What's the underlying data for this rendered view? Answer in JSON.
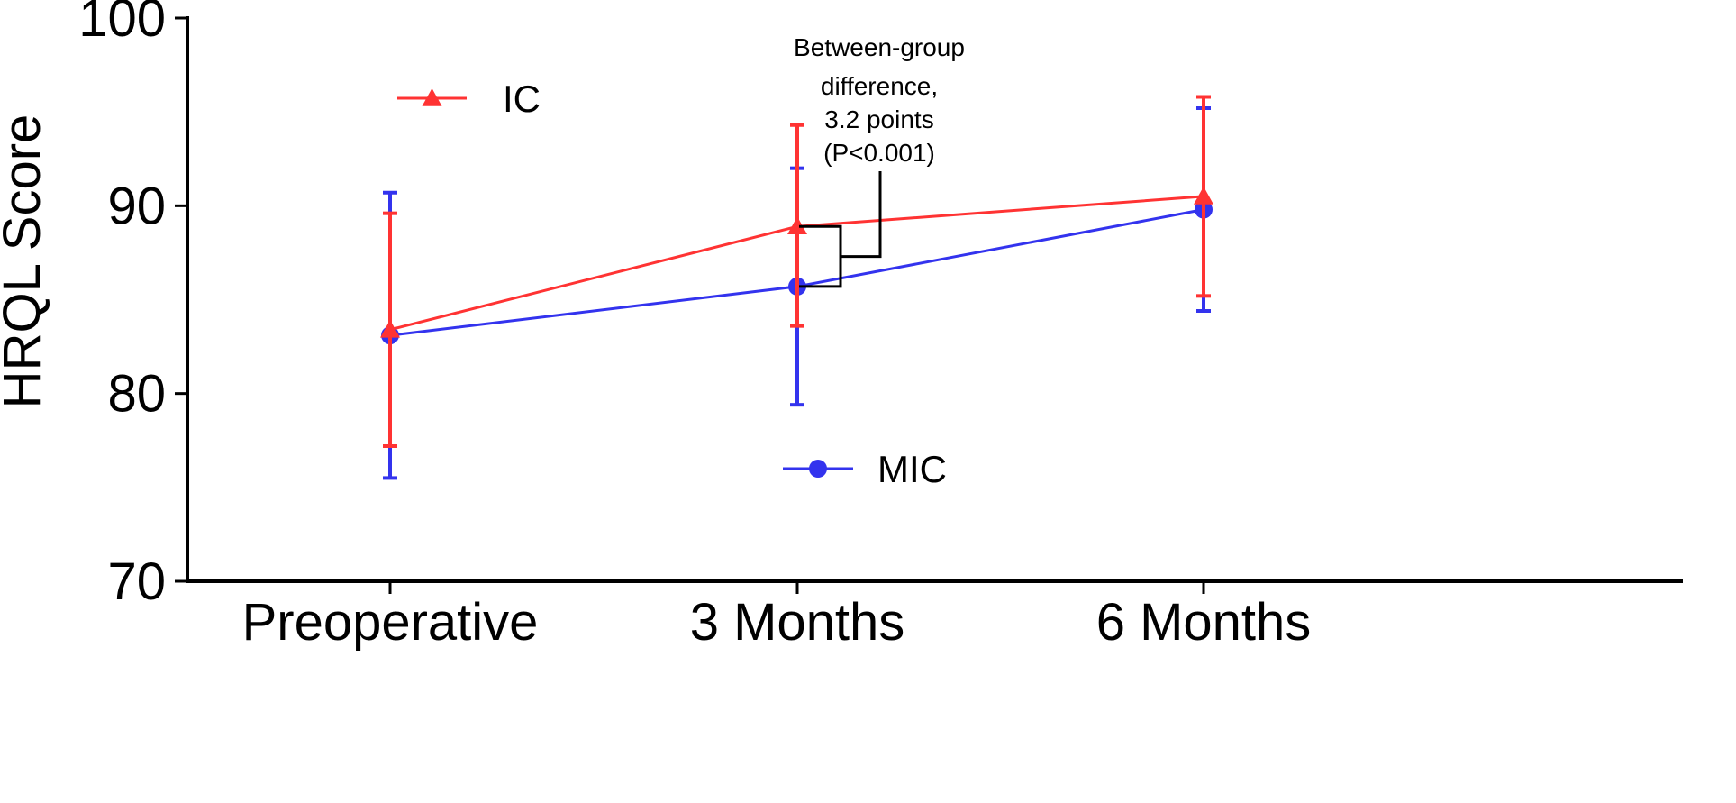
{
  "chart_data": {
    "type": "line",
    "title": "",
    "xlabel": "",
    "ylabel": "HRQL Score",
    "categories": [
      "Preoperative",
      "3 Months",
      "6 Months"
    ],
    "ylim": [
      70,
      100
    ],
    "yticks": [
      70,
      80,
      90,
      100
    ],
    "grid": false,
    "series": [
      {
        "name": "IC",
        "color": "#ff3333",
        "marker": "triangle",
        "values": [
          83.4,
          88.9,
          90.5
        ],
        "error_low": [
          77.2,
          83.6,
          85.2
        ],
        "error_high": [
          89.6,
          94.3,
          95.8
        ]
      },
      {
        "name": "MIC",
        "color": "#3333ee",
        "marker": "circle",
        "values": [
          83.1,
          85.7,
          89.8
        ],
        "error_low": [
          75.5,
          79.4,
          84.4
        ],
        "error_high": [
          90.7,
          92.0,
          95.2
        ]
      }
    ],
    "annotation": {
      "lines": [
        "Between-group",
        "difference,",
        "3.2 points",
        "(P<0.001)"
      ],
      "category_index": 1
    }
  }
}
